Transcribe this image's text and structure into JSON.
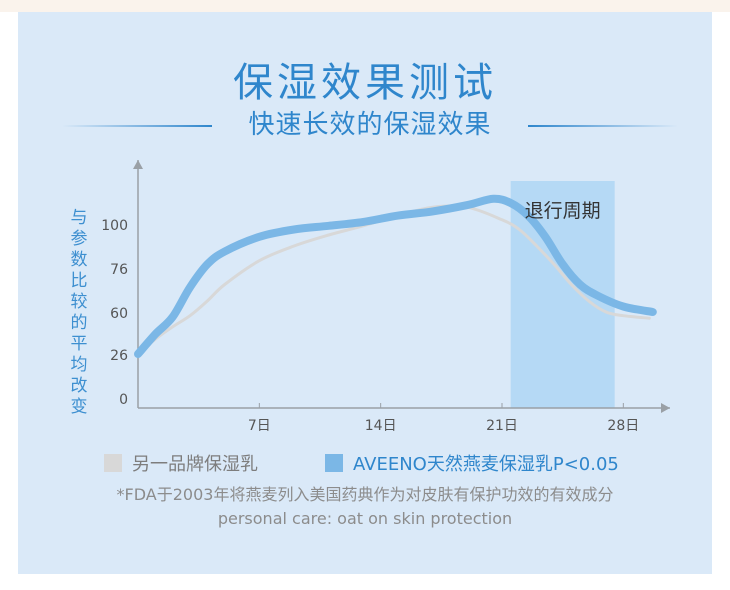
{
  "header": {
    "title": "保湿效果测试",
    "subtitle": "快速长效的保湿效果"
  },
  "colors": {
    "panel_bg": "#dae9f8",
    "accent": "#2f86cc",
    "aveeno_line": "#7bb7e6",
    "other_line": "#d8d8d8",
    "regression_band": "#b5d9f5"
  },
  "chart_data": {
    "type": "line",
    "title": "保湿效果测试",
    "ylabel": "与参数比较的平均改变",
    "xlabel": "",
    "x_ticks": [
      7,
      14,
      21,
      28
    ],
    "x_tick_labels": [
      "7日",
      "14日",
      "21日",
      "28日"
    ],
    "xlim": [
      0,
      30
    ],
    "y_ticks": [
      0,
      26,
      60,
      76,
      100
    ],
    "ylim": [
      0,
      120
    ],
    "grid": false,
    "legend_position": "bottom",
    "annotation": {
      "label": "退行周期",
      "x_start": 21.5,
      "x_end": 27.5
    },
    "series": [
      {
        "name": "另一品牌保湿乳",
        "color": "#d8d8d8",
        "points": [
          [
            0,
            26
          ],
          [
            1,
            38
          ],
          [
            2,
            48
          ],
          [
            3,
            57
          ],
          [
            4,
            64
          ],
          [
            5,
            70
          ],
          [
            7,
            80
          ],
          [
            9,
            88
          ],
          [
            11,
            94
          ],
          [
            13,
            99
          ],
          [
            15,
            104
          ],
          [
            17,
            108
          ],
          [
            19,
            108
          ],
          [
            21,
            102
          ],
          [
            22,
            97
          ],
          [
            23,
            88
          ],
          [
            24,
            78
          ],
          [
            25,
            70
          ],
          [
            26,
            64
          ],
          [
            27,
            60
          ],
          [
            28,
            57
          ],
          [
            29.5,
            55
          ]
        ]
      },
      {
        "name": "AVEENO天然燕麦保湿乳P<0.05",
        "color": "#7bb7e6",
        "points": [
          [
            0,
            26
          ],
          [
            1,
            42
          ],
          [
            2,
            56
          ],
          [
            3,
            69
          ],
          [
            4,
            78
          ],
          [
            5,
            85
          ],
          [
            7,
            93
          ],
          [
            9,
            97
          ],
          [
            11,
            99
          ],
          [
            13,
            101
          ],
          [
            15,
            104
          ],
          [
            17,
            106
          ],
          [
            19,
            109
          ],
          [
            20.5,
            112
          ],
          [
            21.5,
            110
          ],
          [
            22.5,
            104
          ],
          [
            23.5,
            93
          ],
          [
            24.5,
            78
          ],
          [
            25.5,
            70
          ],
          [
            26.5,
            66
          ],
          [
            28,
            62
          ],
          [
            29.7,
            60
          ]
        ]
      }
    ]
  },
  "legend": {
    "items": [
      {
        "label": "另一品牌保湿乳",
        "color": "#d8d8d8"
      },
      {
        "label": "AVEENO天然燕麦保湿乳P<0.05",
        "color": "#7bb7e6"
      }
    ]
  },
  "footnote": {
    "line1": "*FDA于2003年将燕麦列入美国药典作为对皮肤有保护功效的有效成分",
    "line2": "personal care: oat on skin protection"
  }
}
